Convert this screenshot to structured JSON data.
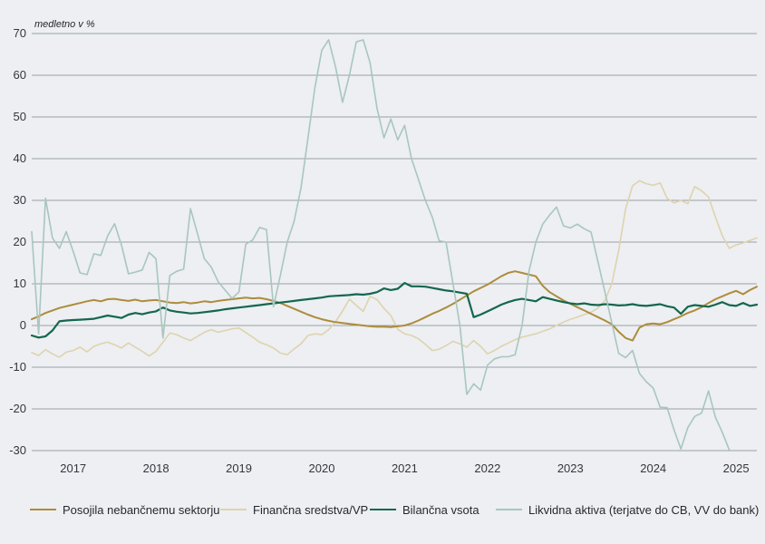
{
  "chart_data": {
    "type": "line",
    "unit_label": "medletno v %",
    "x_interval": "monthly",
    "x_range_start": "2016-07",
    "x_range_end": "2025-04",
    "x_tick_labels": [
      "2017",
      "2018",
      "2019",
      "2020",
      "2021",
      "2022",
      "2023",
      "2024",
      "2025"
    ],
    "y_ticks": [
      70,
      60,
      50,
      40,
      30,
      20,
      10,
      0,
      -10,
      -20,
      -30
    ],
    "ylim": [
      -30,
      70
    ],
    "grid": "horizontal",
    "legend_position": "bottom",
    "background_color": "#edeff2",
    "gridline_color": "#9aa0a6",
    "series": [
      {
        "name": "Posojila nebančnemu sektorju",
        "color": "#ad8c3c",
        "values": [
          1.5,
          2.2,
          3.0,
          3.6,
          4.2,
          4.6,
          5.0,
          5.4,
          5.8,
          6.1,
          5.8,
          6.3,
          6.4,
          6.1,
          5.9,
          6.2,
          5.8,
          6.0,
          6.1,
          5.8,
          5.5,
          5.4,
          5.6,
          5.3,
          5.5,
          5.8,
          5.6,
          5.9,
          6.1,
          6.3,
          6.5,
          6.7,
          6.5,
          6.6,
          6.3,
          5.9,
          5.4,
          4.7,
          4.0,
          3.3,
          2.6,
          2.0,
          1.5,
          1.1,
          0.8,
          0.6,
          0.4,
          0.2,
          0.0,
          -0.2,
          -0.3,
          -0.3,
          -0.4,
          -0.2,
          0.0,
          0.5,
          1.2,
          2.0,
          2.8,
          3.5,
          4.3,
          5.2,
          6.2,
          7.2,
          8.2,
          9.0,
          9.8,
          10.8,
          11.8,
          12.6,
          13.0,
          12.6,
          12.2,
          11.8,
          9.5,
          8.0,
          7.0,
          6.0,
          5.2,
          4.4,
          3.6,
          2.8,
          2.0,
          1.2,
          0.3,
          -1.5,
          -3.0,
          -3.6,
          -0.5,
          0.3,
          0.5,
          0.3,
          0.8,
          1.5,
          2.2,
          3.0,
          3.6,
          4.4,
          5.4,
          6.3,
          7.0,
          7.7,
          8.3,
          7.5,
          8.5,
          9.3
        ]
      },
      {
        "name": "Finančna sredstva/VP",
        "color": "#ded3ae",
        "values": [
          -6.5,
          -7.2,
          -5.8,
          -6.8,
          -7.6,
          -6.4,
          -6.0,
          -5.2,
          -6.3,
          -5.0,
          -4.4,
          -4.0,
          -4.6,
          -5.4,
          -4.2,
          -5.2,
          -6.2,
          -7.3,
          -6.2,
          -4.0,
          -1.8,
          -2.2,
          -3.0,
          -3.6,
          -2.6,
          -1.6,
          -1.0,
          -1.6,
          -1.2,
          -0.8,
          -0.6,
          -1.7,
          -2.8,
          -4.0,
          -4.6,
          -5.4,
          -6.6,
          -7.0,
          -5.6,
          -4.4,
          -2.4,
          -2.0,
          -2.2,
          -1.0,
          0.9,
          3.5,
          6.3,
          4.8,
          3.4,
          7.0,
          6.2,
          4.1,
          2.4,
          -0.9,
          -2.0,
          -2.4,
          -3.2,
          -4.5,
          -6.0,
          -5.7,
          -4.8,
          -3.8,
          -4.4,
          -5.2,
          -3.6,
          -5.0,
          -6.8,
          -6.0,
          -5.0,
          -4.2,
          -3.4,
          -2.8,
          -2.4,
          -2.0,
          -1.4,
          -0.8,
          0.0,
          0.8,
          1.5,
          2.0,
          2.6,
          3.2,
          4.2,
          6.0,
          10.0,
          18.0,
          28.0,
          33.5,
          34.7,
          34.0,
          33.6,
          34.2,
          30.5,
          29.4,
          30.0,
          29.2,
          33.3,
          32.3,
          30.8,
          26.0,
          21.5,
          18.5,
          19.3,
          19.8,
          20.4,
          21.0
        ]
      },
      {
        "name": "Bilančna vsota",
        "color": "#14674e",
        "values": [
          -2.4,
          -2.9,
          -2.6,
          -1.2,
          1.0,
          1.2,
          1.3,
          1.4,
          1.5,
          1.6,
          2.0,
          2.4,
          2.1,
          1.8,
          2.6,
          3.0,
          2.7,
          3.1,
          3.4,
          4.3,
          3.6,
          3.3,
          3.1,
          2.9,
          3.0,
          3.2,
          3.4,
          3.6,
          3.9,
          4.1,
          4.3,
          4.5,
          4.7,
          4.9,
          5.1,
          5.3,
          5.5,
          5.7,
          5.9,
          6.1,
          6.3,
          6.5,
          6.7,
          7.0,
          7.1,
          7.2,
          7.3,
          7.5,
          7.4,
          7.6,
          8.0,
          8.9,
          8.5,
          8.8,
          10.2,
          9.4,
          9.4,
          9.3,
          9.0,
          8.7,
          8.4,
          8.2,
          7.9,
          7.6,
          2.0,
          2.6,
          3.4,
          4.2,
          5.0,
          5.6,
          6.1,
          6.4,
          6.1,
          5.8,
          6.8,
          6.4,
          6.0,
          5.6,
          5.3,
          5.1,
          5.3,
          5.0,
          4.9,
          5.1,
          5.0,
          4.8,
          4.9,
          5.1,
          4.8,
          4.7,
          4.9,
          5.1,
          4.6,
          4.3,
          2.8,
          4.5,
          4.9,
          4.7,
          4.5,
          5.0,
          5.6,
          4.9,
          4.7,
          5.4,
          4.7,
          5.0
        ]
      },
      {
        "name": "Likvidna aktiva (terjatve do CB, VV do bank)",
        "color": "#a8c6be",
        "values": [
          22.5,
          -2,
          30.5,
          21,
          18.5,
          22.5,
          17.8,
          12.6,
          12.2,
          17.2,
          16.8,
          21.5,
          24.4,
          19.3,
          12.4,
          12.8,
          13.3,
          17.5,
          16,
          -3,
          12,
          13,
          13.5,
          28,
          22,
          16,
          14,
          10.5,
          8.5,
          6.5,
          8,
          19.5,
          20.5,
          23.5,
          23,
          4.5,
          12,
          20,
          25,
          33,
          45,
          57,
          66,
          68.5,
          62,
          53.5,
          60,
          68,
          68.5,
          63,
          52,
          45,
          49.5,
          44.5,
          48,
          40,
          35,
          30,
          26,
          20.3,
          20,
          10,
          0,
          -16.5,
          -14,
          -15.5,
          -9.5,
          -8,
          -7.5,
          -7.5,
          -7,
          0,
          13,
          20,
          24.3,
          26.5,
          28.4,
          23.9,
          23.4,
          24.3,
          23.2,
          22.4,
          15.2,
          8,
          0.6,
          -6.7,
          -7.7,
          -6,
          -11.5,
          -13.5,
          -15,
          -19.6,
          -19.7,
          -25,
          -29.6,
          -24.5,
          -21.8,
          -21,
          -15.7,
          -22,
          -25.6,
          -29.8
        ]
      }
    ]
  },
  "legend": {
    "items": [
      {
        "label": "Posojila nebančnemu sektorju"
      },
      {
        "label": "Finančna sredstva/VP"
      },
      {
        "label": "Bilančna vsota"
      },
      {
        "label": "Likvidna aktiva (terjatve do CB, VV do bank)"
      }
    ]
  }
}
